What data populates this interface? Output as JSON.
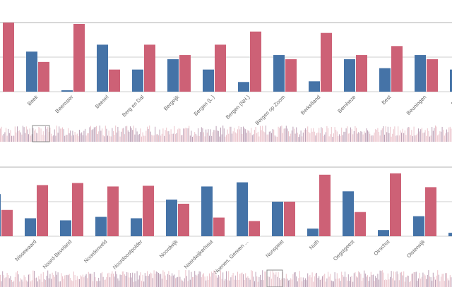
{
  "colors": {
    "series_a": "#4573a7",
    "series_b": "#cd6176",
    "grid": "#cccccc",
    "label": "#666666"
  },
  "chart_data": [
    {
      "type": "bar",
      "ylim": [
        0,
        100
      ],
      "grid": true,
      "categories": [
        "",
        "Beek",
        "Beemster",
        "Beesel",
        "Berg en Dal",
        "Bergeijk",
        "Bergen (L.)",
        "Bergen (NH.)",
        "Bergen op Zoom",
        "Berkelland",
        "Bernheze",
        "Best",
        "Beuningen",
        "Beve"
      ],
      "series": [
        {
          "values": [
            null,
            58,
            2,
            68,
            32,
            47,
            32,
            14,
            53,
            15,
            47,
            34,
            53,
            32
          ]
        },
        {
          "values": [
            100,
            43,
            98,
            32,
            68,
            53,
            68,
            87,
            47,
            85,
            53,
            66,
            47,
            null
          ]
        }
      ],
      "overview_window": "left"
    },
    {
      "type": "bar",
      "ylim": [
        0,
        100
      ],
      "grid": true,
      "categories": [
        "",
        "Nissewaard",
        "Noord-Beveland",
        "Noordenveld",
        "Noordoostpolder",
        "Noordwijk",
        "Noordwijkerhout",
        "Nuenen, Gerwen ...",
        "Nunspeet",
        "Nuth",
        "Oegstgeest",
        "Oirschot",
        "Oisterwijk",
        ""
      ],
      "series": [
        {
          "values": [
            61,
            26,
            23,
            28,
            26,
            53,
            72,
            78,
            50,
            11,
            65,
            9,
            29,
            5
          ]
        },
        {
          "values": [
            38,
            74,
            77,
            72,
            73,
            47,
            27,
            22,
            50,
            89,
            35,
            91,
            71,
            null
          ]
        }
      ],
      "overview_window": "middle"
    }
  ]
}
